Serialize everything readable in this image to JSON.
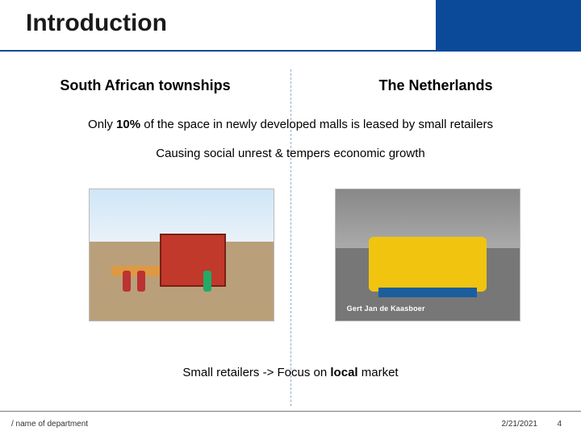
{
  "accent_color": "#0a4a99",
  "title": "Introduction",
  "columns": {
    "left_header": "South African townships",
    "right_header": "The Netherlands"
  },
  "lines": {
    "stat_prefix": "Only ",
    "stat_bold": "10%",
    "stat_suffix": " of the space in newly developed malls is leased by small retailers",
    "consequence": "Causing social unrest & tempers economic growth",
    "focus_prefix": "Small retailers -> Focus on ",
    "focus_bold": "local",
    "focus_suffix": " market"
  },
  "images": {
    "left_alt": "Informal township stall with people",
    "right_alt": "Mobile cheese cart in Dutch street",
    "right_caption": "Gert Jan  de Kaasboer"
  },
  "footer": {
    "department": "/ name of department",
    "date": "2/21/2021",
    "page": "4"
  }
}
